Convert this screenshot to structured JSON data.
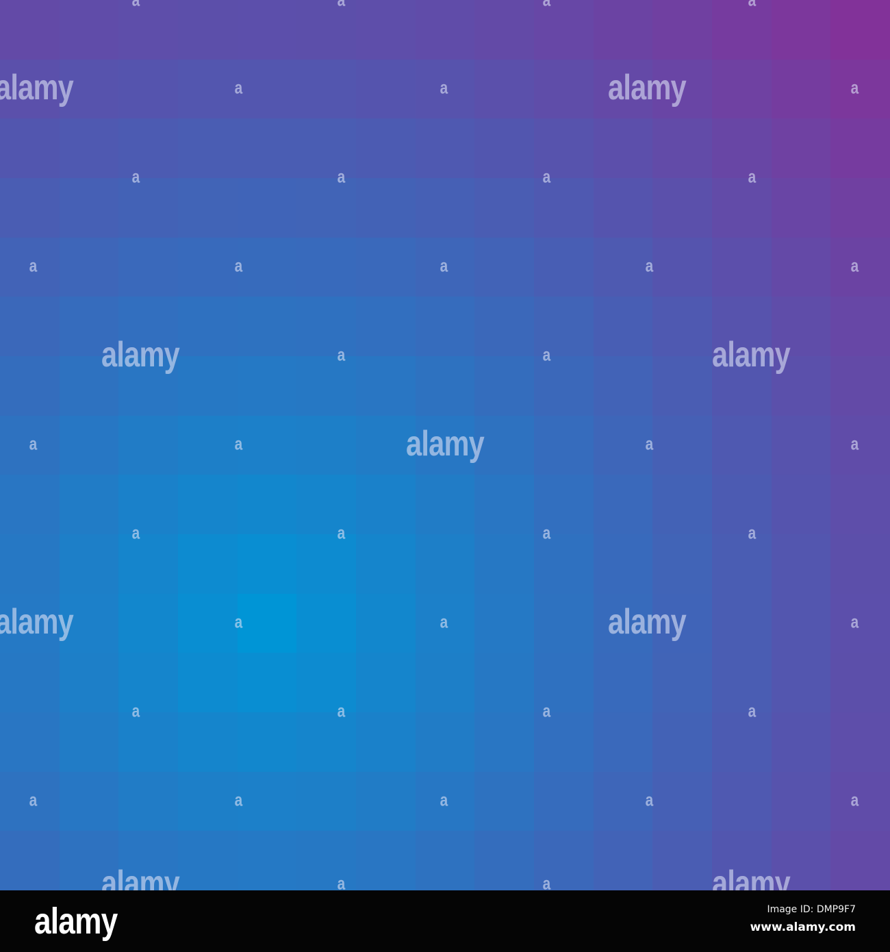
{
  "image": {
    "description_colors": {
      "center": "#0095d6",
      "edge": "#8a2c95"
    },
    "watermark_big": "alamy",
    "watermark_small": "a"
  },
  "footer": {
    "logo": "alamy",
    "image_id": "Image ID: DMP9F7",
    "website": "www.alamy.com"
  }
}
